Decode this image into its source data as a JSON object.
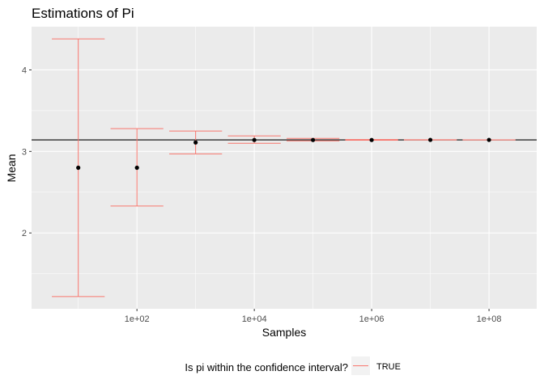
{
  "chart_data": {
    "type": "scatter",
    "title": "Estimations of Pi",
    "xlabel": "Samples",
    "ylabel": "Mean",
    "x_scale": "log10",
    "xlim": [
      1.6,
      650000000
    ],
    "ylim": [
      1.07,
      4.53
    ],
    "x_ticks": [
      {
        "value": 100,
        "label": "1e+02"
      },
      {
        "value": 10000,
        "label": "1e+04"
      },
      {
        "value": 1000000,
        "label": "1e+06"
      },
      {
        "value": 100000000,
        "label": "1e+08"
      }
    ],
    "y_ticks": [
      {
        "value": 2,
        "label": "2"
      },
      {
        "value": 3,
        "label": "3"
      },
      {
        "value": 4,
        "label": "4"
      }
    ],
    "grid": true,
    "reference_line": 3.14159,
    "points": [
      {
        "x": 10,
        "mean": 2.8,
        "lower": 1.22,
        "upper": 4.38
      },
      {
        "x": 100,
        "mean": 2.8,
        "lower": 2.33,
        "upper": 3.28
      },
      {
        "x": 1000,
        "mean": 3.11,
        "lower": 2.97,
        "upper": 3.25
      },
      {
        "x": 10000,
        "mean": 3.14,
        "lower": 3.1,
        "upper": 3.19
      },
      {
        "x": 100000,
        "mean": 3.14,
        "lower": 3.13,
        "upper": 3.16
      },
      {
        "x": 1000000,
        "mean": 3.14,
        "lower": 3.137,
        "upper": 3.146
      },
      {
        "x": 10000000,
        "mean": 3.1416,
        "lower": 3.1405,
        "upper": 3.1427
      },
      {
        "x": 100000000,
        "mean": 3.1416,
        "lower": 3.1412,
        "upper": 3.142
      }
    ],
    "legend": {
      "title": "Is pi within the confidence interval?",
      "entries": [
        "TRUE"
      ],
      "placement": "bottom"
    },
    "colors": {
      "errorbar": "#f8766d",
      "point": "#000000",
      "reference": "#000000",
      "panel": "#ebebeb",
      "grid": "#ffffff"
    }
  }
}
